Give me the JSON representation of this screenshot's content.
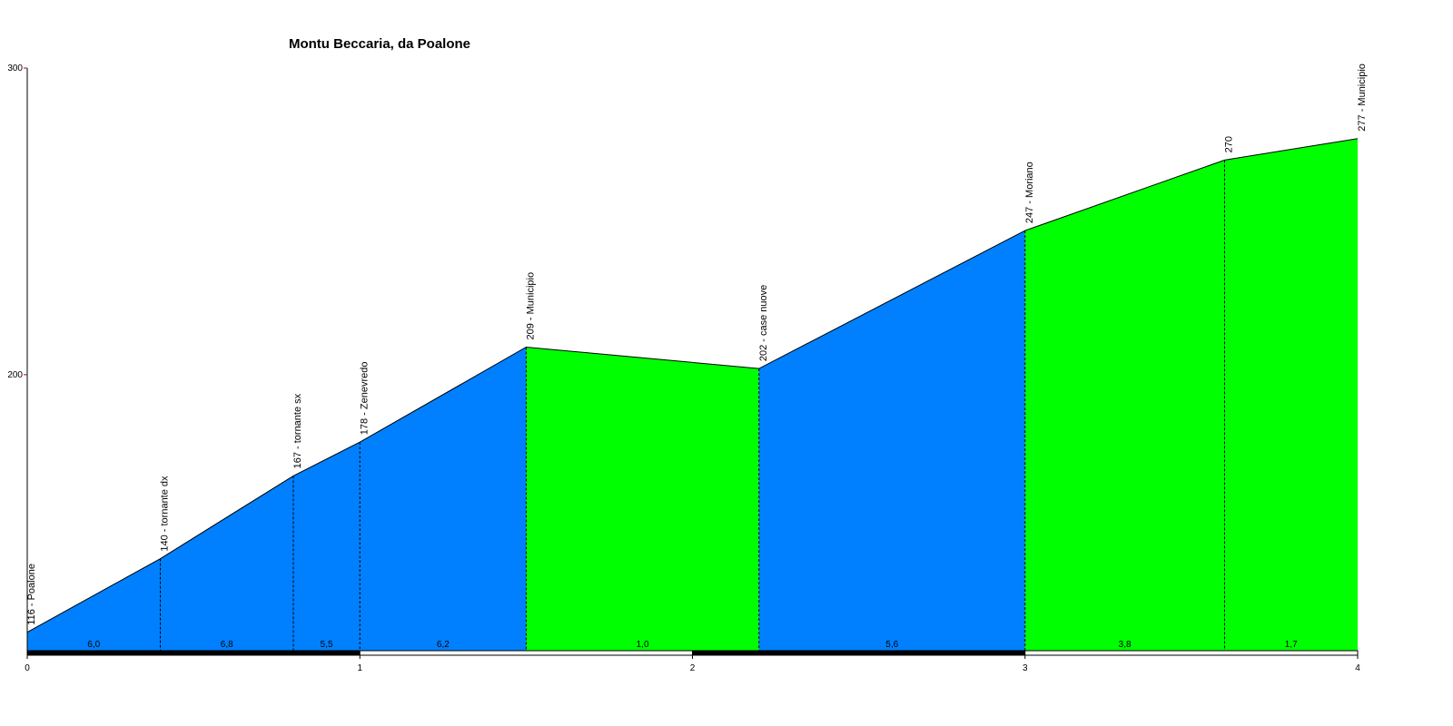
{
  "chart_data": {
    "type": "profile",
    "title": "Montu Beccaria, da Poalone",
    "x": [
      0,
      0.4,
      0.8,
      1.0,
      1.5,
      2.2,
      3.0,
      3.6,
      4.0
    ],
    "values": [
      116,
      140,
      167,
      178,
      209,
      202,
      247,
      270,
      277
    ],
    "point_labels": [
      "116 - Poalone",
      "140 - tornante dx",
      "167 - tornante sx",
      "178 - Zenevredo",
      "209 - Municipio",
      "202 - case nuove",
      "247 - Moriano",
      "270",
      "277 - Municipio"
    ],
    "segments": {
      "values": [
        6.0,
        6.8,
        5.5,
        6.2,
        1.0,
        5.6,
        3.8,
        1.7
      ],
      "value_labels": [
        "6,0",
        "6,8",
        "5,5",
        "6,2",
        "1,0",
        "5,6",
        "3,8",
        "1,7"
      ],
      "colors": [
        "#0080ff",
        "#0080ff",
        "#0080ff",
        "#0080ff",
        "#00ff00",
        "#0080ff",
        "#00ff00",
        "#00ff00"
      ]
    },
    "xlim": [
      0,
      4
    ],
    "xticks": [
      0,
      1,
      2,
      3,
      4
    ],
    "ylim": [
      110,
      300
    ],
    "yticks": [
      200,
      300
    ]
  }
}
